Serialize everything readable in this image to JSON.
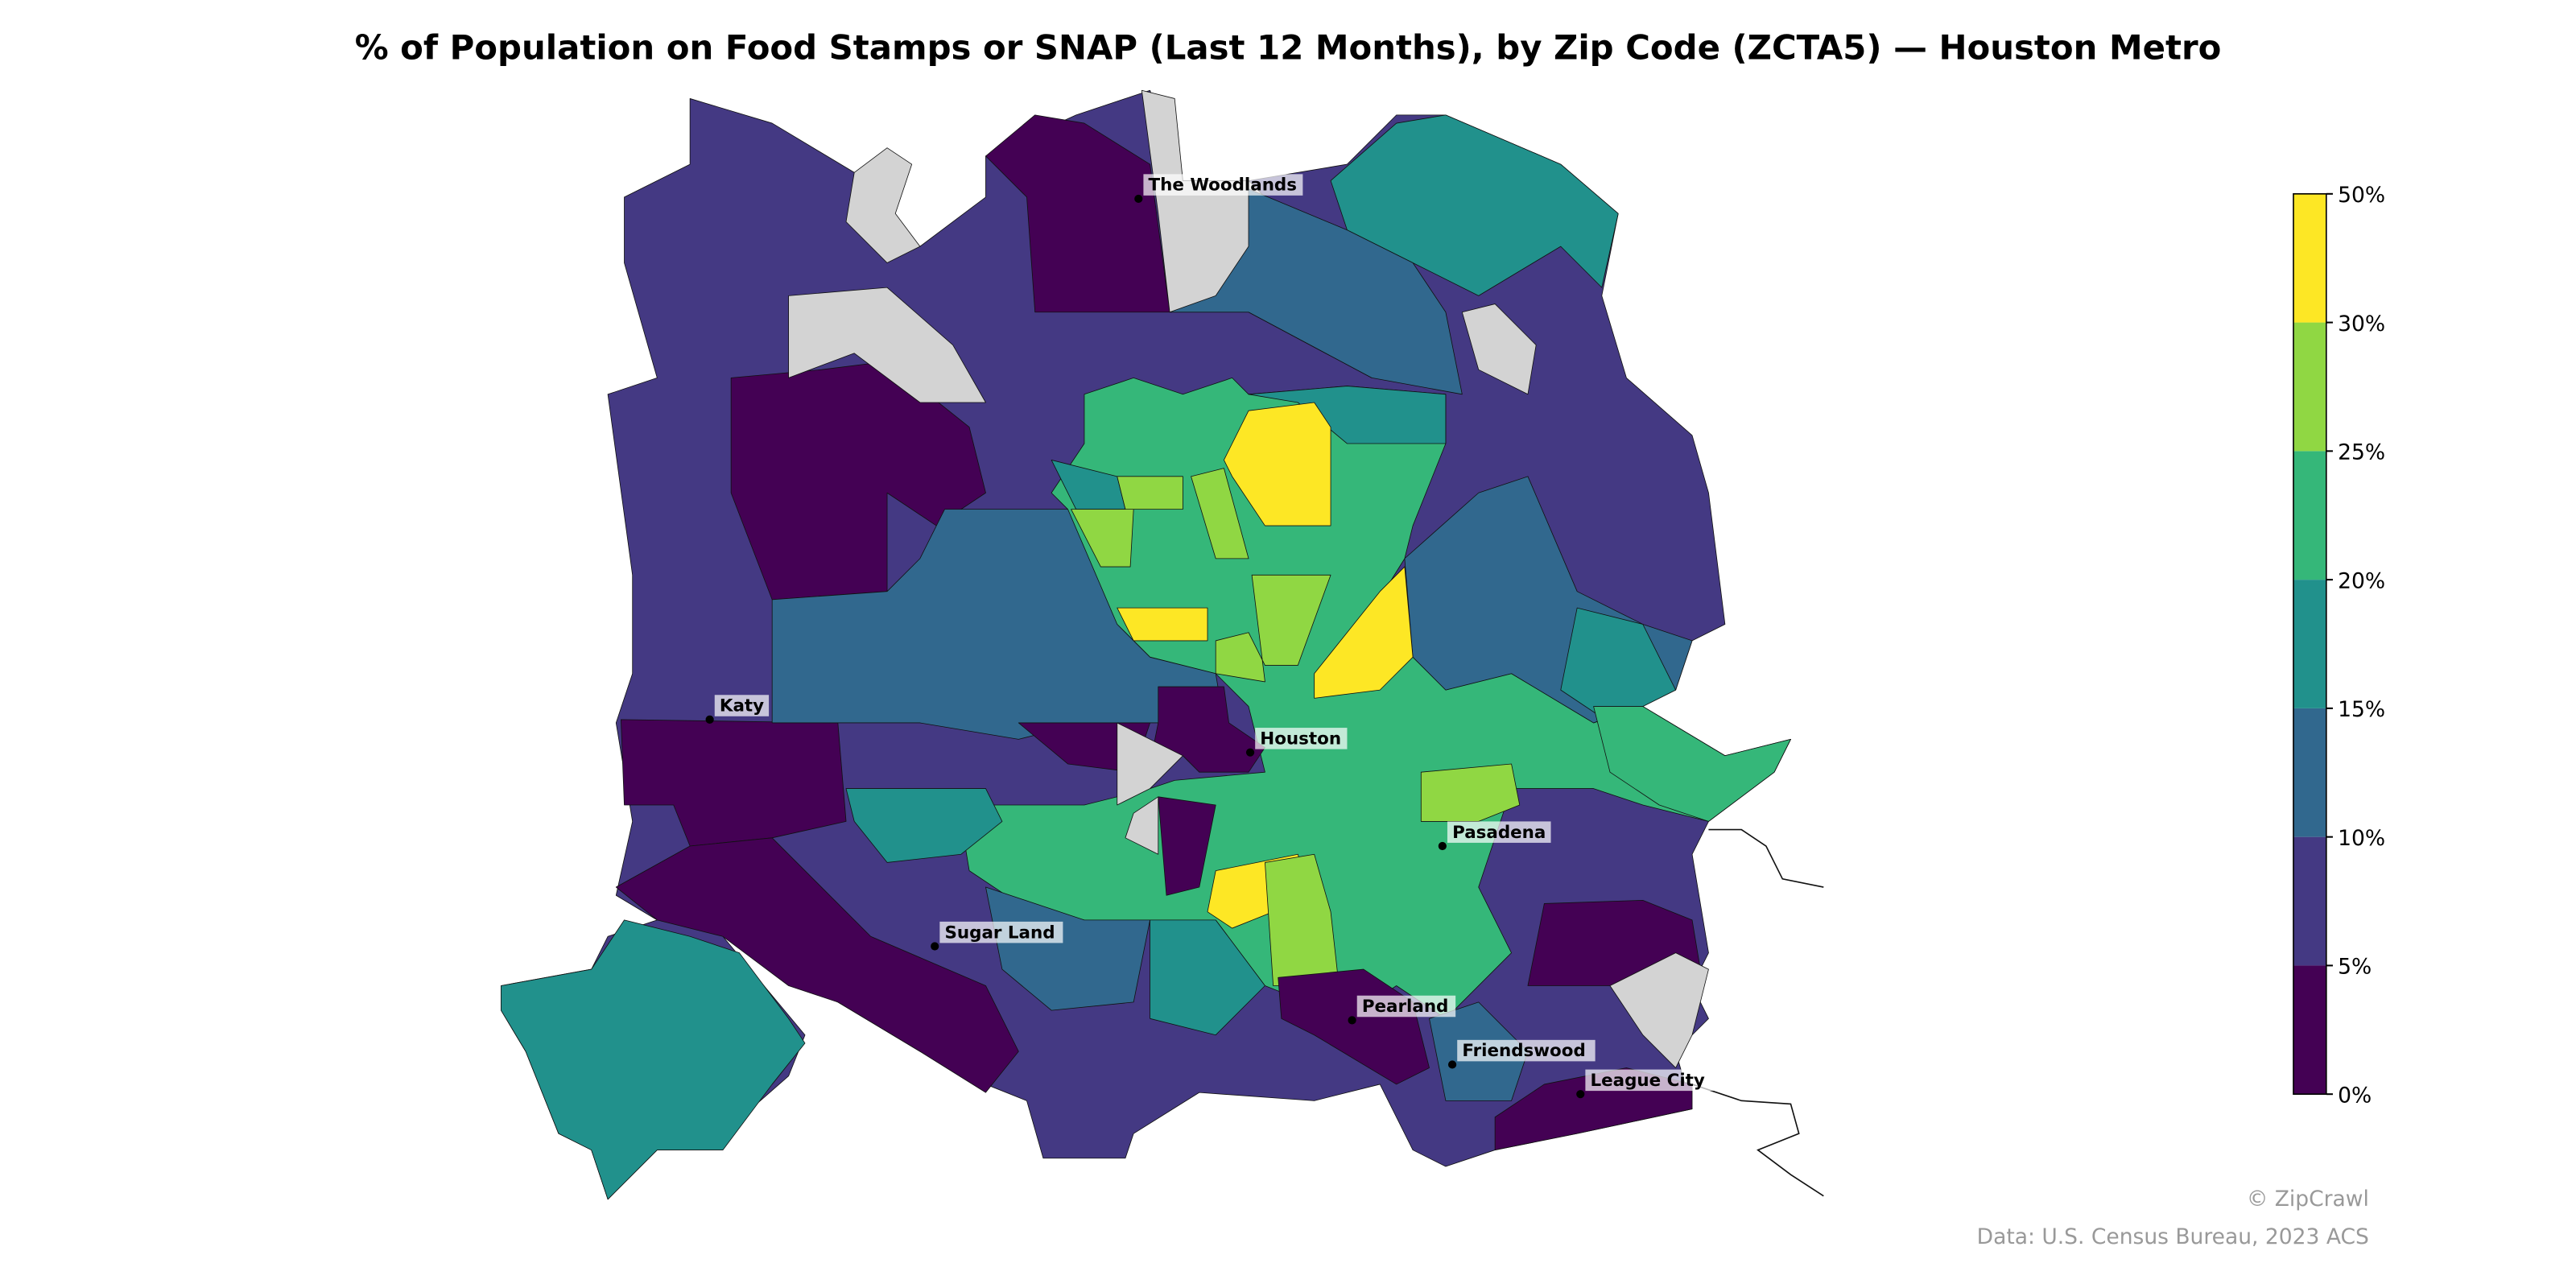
{
  "title": "% of Population on Food Stamps or SNAP (Last 12 Months), by Zip Code (ZCTA5) — Houston Metro",
  "colorbar": {
    "ticks": [
      "0%",
      "5%",
      "10%",
      "15%",
      "20%",
      "25%",
      "30%",
      "50%"
    ],
    "bin_colors": [
      "#440154",
      "#443983",
      "#31688e",
      "#21918c",
      "#35b779",
      "#90d743",
      "#fde725"
    ],
    "no_data_color": "#d3d3d3"
  },
  "cities": [
    {
      "name": "The Woodlands"
    },
    {
      "name": "Katy"
    },
    {
      "name": "Houston"
    },
    {
      "name": "Pasadena"
    },
    {
      "name": "Sugar Land"
    },
    {
      "name": "Pearland"
    },
    {
      "name": "Friendswood"
    },
    {
      "name": "League City"
    }
  ],
  "credits": {
    "brand": "© ZipCrawl",
    "source": "Data: U.S. Census Bureau, 2023 ACS"
  }
}
